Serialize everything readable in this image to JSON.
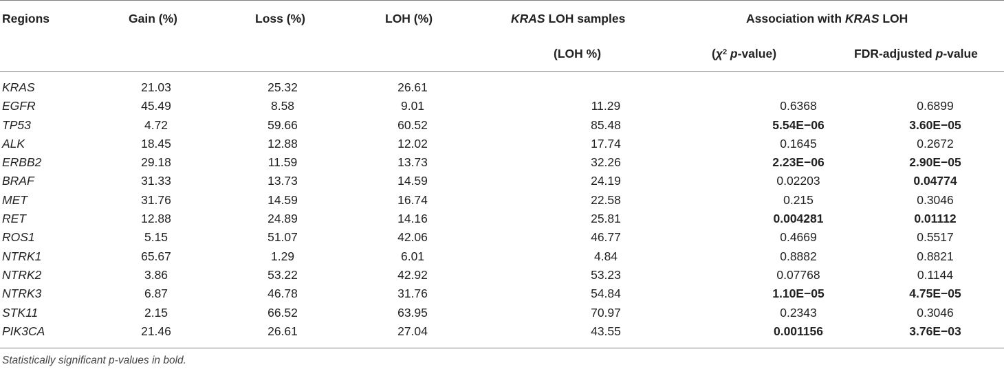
{
  "headers": {
    "regions": "Regions",
    "gain": "Gain (%)",
    "loss": "Loss (%)",
    "loh": "LOH (%)",
    "kras_italic": "KRAS",
    "kras_loh_samples_rest": " LOH samples",
    "loh_pct": "(LOH %)",
    "assoc_prefix": "Association with ",
    "assoc_kras": "KRAS",
    "assoc_suffix": " LOH",
    "chi_open": "(",
    "chi_symbol": "χ",
    "chi_sup": "2",
    "chi_p": " p",
    "chi_rest": "-value)",
    "fdr_prefix": "FDR-adjusted ",
    "fdr_p": "p",
    "fdr_rest": "-value"
  },
  "rows": [
    {
      "region": "KRAS",
      "gain": "21.03",
      "loss": "25.32",
      "loh": "26.61",
      "samples": "",
      "chi": "",
      "chi_bold": false,
      "fdr": "",
      "fdr_bold": false
    },
    {
      "region": "EGFR",
      "gain": "45.49",
      "loss": "8.58",
      "loh": "9.01",
      "samples": "11.29",
      "chi": "0.6368",
      "chi_bold": false,
      "fdr": "0.6899",
      "fdr_bold": false
    },
    {
      "region": "TP53",
      "gain": "4.72",
      "loss": "59.66",
      "loh": "60.52",
      "samples": "85.48",
      "chi": "5.54E−06",
      "chi_bold": true,
      "fdr": "3.60E−05",
      "fdr_bold": true
    },
    {
      "region": "ALK",
      "gain": "18.45",
      "loss": "12.88",
      "loh": "12.02",
      "samples": "17.74",
      "chi": "0.1645",
      "chi_bold": false,
      "fdr": "0.2672",
      "fdr_bold": false
    },
    {
      "region": "ERBB2",
      "gain": "29.18",
      "loss": "11.59",
      "loh": "13.73",
      "samples": "32.26",
      "chi": "2.23E−06",
      "chi_bold": true,
      "fdr": "2.90E−05",
      "fdr_bold": true
    },
    {
      "region": "BRAF",
      "gain": "31.33",
      "loss": "13.73",
      "loh": "14.59",
      "samples": "24.19",
      "chi": "0.02203",
      "chi_bold": false,
      "fdr": "0.04774",
      "fdr_bold": true
    },
    {
      "region": "MET",
      "gain": "31.76",
      "loss": "14.59",
      "loh": "16.74",
      "samples": "22.58",
      "chi": "0.215",
      "chi_bold": false,
      "fdr": "0.3046",
      "fdr_bold": false
    },
    {
      "region": "RET",
      "gain": "12.88",
      "loss": "24.89",
      "loh": "14.16",
      "samples": "25.81",
      "chi": "0.004281",
      "chi_bold": true,
      "fdr": "0.01112",
      "fdr_bold": true
    },
    {
      "region": "ROS1",
      "gain": "5.15",
      "loss": "51.07",
      "loh": "42.06",
      "samples": "46.77",
      "chi": "0.4669",
      "chi_bold": false,
      "fdr": "0.5517",
      "fdr_bold": false
    },
    {
      "region": "NTRK1",
      "gain": "65.67",
      "loss": "1.29",
      "loh": "6.01",
      "samples": "4.84",
      "chi": "0.8882",
      "chi_bold": false,
      "fdr": "0.8821",
      "fdr_bold": false
    },
    {
      "region": "NTRK2",
      "gain": "3.86",
      "loss": "53.22",
      "loh": "42.92",
      "samples": "53.23",
      "chi": "0.07768",
      "chi_bold": false,
      "fdr": "0.1144",
      "fdr_bold": false
    },
    {
      "region": "NTRK3",
      "gain": "6.87",
      "loss": "46.78",
      "loh": "31.76",
      "samples": "54.84",
      "chi": "1.10E−05",
      "chi_bold": true,
      "fdr": "4.75E−05",
      "fdr_bold": true
    },
    {
      "region": "STK11",
      "gain": "2.15",
      "loss": "66.52",
      "loh": "63.95",
      "samples": "70.97",
      "chi": "0.2343",
      "chi_bold": false,
      "fdr": "0.3046",
      "fdr_bold": false
    },
    {
      "region": "PIK3CA",
      "gain": "21.46",
      "loss": "26.61",
      "loh": "27.04",
      "samples": "43.55",
      "chi": "0.001156",
      "chi_bold": true,
      "fdr": "3.76E−03",
      "fdr_bold": true
    }
  ],
  "footnote": "Statistically significant p-values in bold."
}
